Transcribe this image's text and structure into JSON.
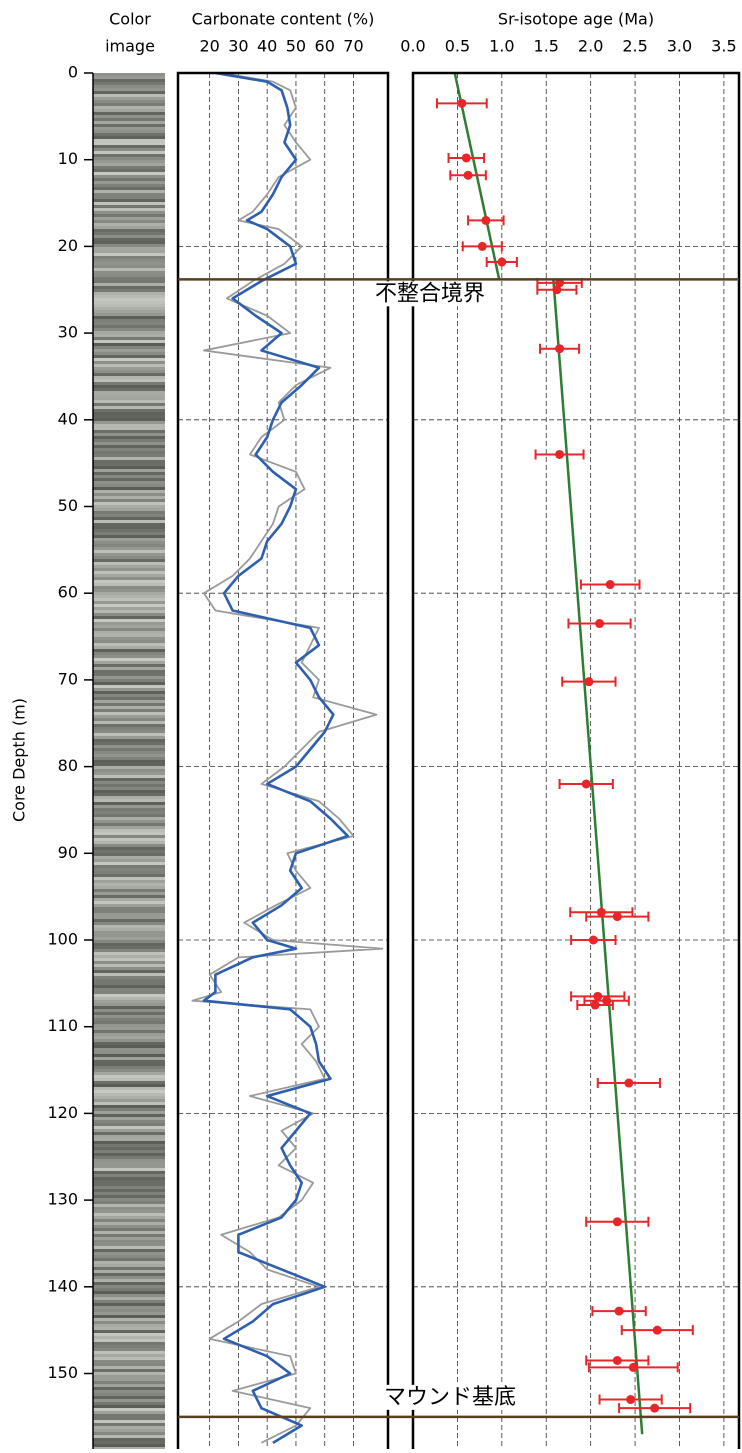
{
  "color_image_title": [
    "Color",
    "image"
  ],
  "y_axis": {
    "label": "Core Depth (m)",
    "ylim": [
      0,
      158.7
    ],
    "yticks": [
      0,
      10,
      20,
      30,
      40,
      50,
      60,
      70,
      80,
      90,
      100,
      110,
      120,
      130,
      140,
      150
    ]
  },
  "horizons": [
    {
      "label": "不整合境界",
      "depth": 23.8
    },
    {
      "label": "マウンド基底",
      "depth": 155
    }
  ],
  "chart_data": [
    {
      "type": "line",
      "title": "Carbonate content (%)",
      "xlim": [
        9,
        82
      ],
      "xticks": [
        20,
        30,
        40,
        50,
        60,
        70
      ],
      "ylim": [
        0,
        158.7
      ],
      "ygrid": [
        20,
        40,
        60,
        80,
        100,
        120,
        140
      ],
      "y": [
        0,
        1,
        2,
        4,
        6,
        8,
        10,
        12,
        14,
        16,
        17,
        18,
        20,
        22,
        24,
        26,
        28,
        30,
        32,
        34,
        36,
        38,
        40,
        42,
        44,
        46,
        48,
        50,
        52,
        54,
        56,
        58,
        60,
        62,
        64,
        66,
        68,
        70,
        72,
        74,
        76,
        78,
        80,
        82,
        84,
        86,
        88,
        90,
        92,
        94,
        96,
        98,
        100,
        101,
        102,
        104,
        106,
        107,
        108,
        110,
        112,
        114,
        116,
        118,
        120,
        122,
        124,
        126,
        128,
        130,
        132,
        134,
        136,
        138,
        140,
        142,
        144,
        146,
        148,
        150,
        152,
        154,
        156,
        158
      ],
      "series": [
        {
          "color": "#9a9a9a",
          "values": [
            24,
            42,
            48,
            50,
            46,
            50,
            55,
            44,
            40,
            35,
            30,
            44,
            52,
            46,
            35,
            26,
            40,
            48,
            18,
            62,
            50,
            44,
            46,
            38,
            34,
            50,
            53,
            44,
            42,
            38,
            34,
            28,
            18,
            22,
            58,
            55,
            52,
            58,
            56,
            78,
            58,
            52,
            46,
            38,
            58,
            65,
            70,
            47,
            50,
            55,
            43,
            32,
            42,
            80,
            30,
            20,
            24,
            14,
            55,
            58,
            52,
            57,
            60,
            34,
            56,
            45,
            50,
            44,
            56,
            52,
            44,
            24,
            34,
            40,
            58,
            38,
            30,
            20,
            48,
            50,
            28,
            55,
            50,
            38
          ]
        },
        {
          "color": "#2e5fae",
          "values": [
            22,
            40,
            45,
            47,
            48,
            46,
            50,
            45,
            42,
            38,
            33,
            40,
            48,
            50,
            38,
            28,
            36,
            45,
            38,
            58,
            52,
            45,
            42,
            40,
            36,
            42,
            50,
            48,
            45,
            40,
            38,
            30,
            25,
            28,
            55,
            58,
            50,
            55,
            58,
            63,
            60,
            55,
            50,
            40,
            55,
            62,
            68,
            50,
            48,
            52,
            45,
            35,
            40,
            50,
            35,
            22,
            22,
            18,
            48,
            55,
            57,
            58,
            62,
            40,
            55,
            50,
            45,
            48,
            52,
            50,
            45,
            30,
            30,
            45,
            60,
            42,
            35,
            25,
            40,
            48,
            35,
            38,
            52,
            42
          ]
        }
      ]
    },
    {
      "type": "scatter",
      "title": "Sr-isotope age (Ma)",
      "xlim": [
        0,
        3.67
      ],
      "xticks": [
        {
          "value": 0,
          "label": "0.0"
        },
        0.5,
        {
          "value": 1,
          "label": "1.0"
        },
        1.5,
        {
          "value": 2,
          "label": "2.0"
        },
        2.5,
        {
          "value": 3,
          "label": "3.0"
        },
        3.5
      ],
      "ylim": [
        0,
        158.7
      ],
      "ygrid": [
        20,
        40,
        60,
        80,
        100,
        120,
        140
      ],
      "points": {
        "color": "#e8262a",
        "depth": [
          3.5,
          9.8,
          11.8,
          17.0,
          20.0,
          21.8,
          24.2,
          25.0,
          31.8,
          44.0,
          59.0,
          63.5,
          70.2,
          82.0,
          96.8,
          97.3,
          100.0,
          106.5,
          107.0,
          107.5,
          116.5,
          132.5,
          142.8,
          145.0,
          148.5,
          149.3,
          153.0,
          154.0
        ],
        "age": [
          0.55,
          0.6,
          0.62,
          0.82,
          0.78,
          1.0,
          1.65,
          1.62,
          1.65,
          1.65,
          2.22,
          2.1,
          1.98,
          1.95,
          2.12,
          2.3,
          2.03,
          2.08,
          2.18,
          2.05,
          2.43,
          2.3,
          2.32,
          2.75,
          2.3,
          2.48,
          2.45,
          2.72
        ],
        "error": [
          0.28,
          0.2,
          0.2,
          0.2,
          0.22,
          0.17,
          0.25,
          0.22,
          0.22,
          0.27,
          0.33,
          0.35,
          0.3,
          0.3,
          0.35,
          0.35,
          0.25,
          0.3,
          0.25,
          0.2,
          0.35,
          0.35,
          0.3,
          0.4,
          0.35,
          0.5,
          0.35,
          0.4
        ]
      },
      "trend": {
        "color": "#2e7d32",
        "x": [
          0.47,
          0.97,
          null,
          1.58,
          2.58
        ],
        "y": [
          0,
          23.8,
          null,
          23.8,
          157
        ]
      }
    }
  ]
}
